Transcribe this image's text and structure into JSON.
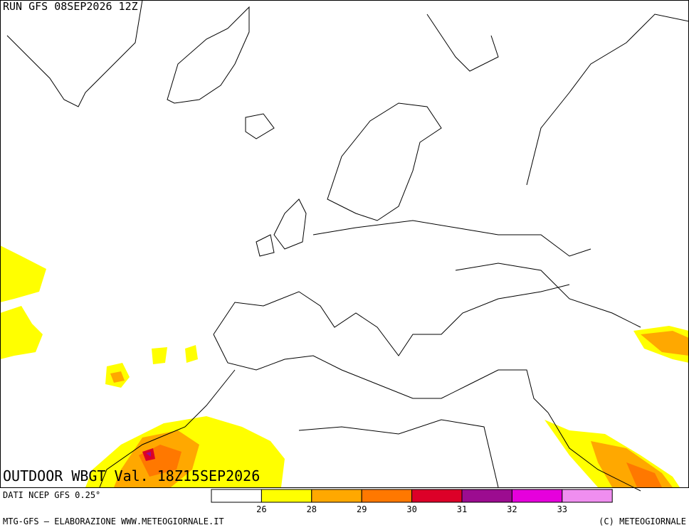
{
  "header": {
    "run": "RUN GFS 08SEP2026 12Z"
  },
  "map": {
    "title": "OUTDOOR WBGT Val. 18Z15SEP2026"
  },
  "legend": {
    "source": "DATI NCEP GFS 0.25°",
    "colors": [
      "#ffffff",
      "#ffff00",
      "#ffa800",
      "#ff7800",
      "#dc0028",
      "#9c0c90",
      "#e600dc",
      "#f08ef0"
    ],
    "labels": [
      "26",
      "28",
      "29",
      "30",
      "31",
      "32",
      "33"
    ]
  },
  "footer": {
    "left": "MTG-GFS — ELABORAZIONE WWW.METEOGIORNALE.IT",
    "right": "(C) METEOGIORNALE"
  }
}
